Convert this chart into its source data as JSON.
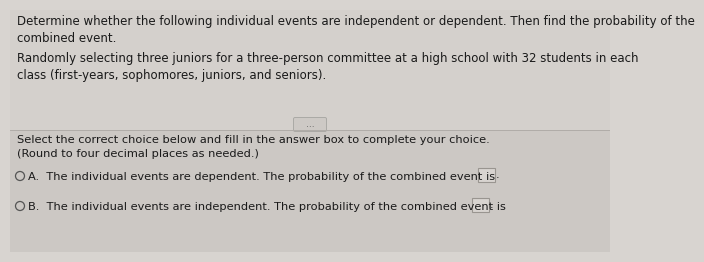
{
  "bg_color": "#d8d4d0",
  "top_bg": "#d4d0cc",
  "bottom_bg": "#ccc8c4",
  "divider_color": "#b0aca8",
  "title_text": "Determine whether the following individual events are independent or dependent. Then find the probability of the\ncombined event.",
  "body_text": "Randomly selecting three juniors for a three-person committee at a high school with 32 students in each\nclass (first-years, sophomores, juniors, and seniors).",
  "instruction_text": "Select the correct choice below and fill in the answer box to complete your choice.\n(Round to four decimal places as needed.)",
  "option_a": "The individual events are dependent. The probability of the combined event is",
  "option_b": "The individual events are independent. The probability of the combined event is",
  "divider_button_text": "...",
  "font_size_main": 8.5,
  "font_size_options": 8.2,
  "text_color": "#1a1a1a",
  "circle_color": "#555555",
  "box_face": "#d8d4d0",
  "box_edge": "#999590"
}
